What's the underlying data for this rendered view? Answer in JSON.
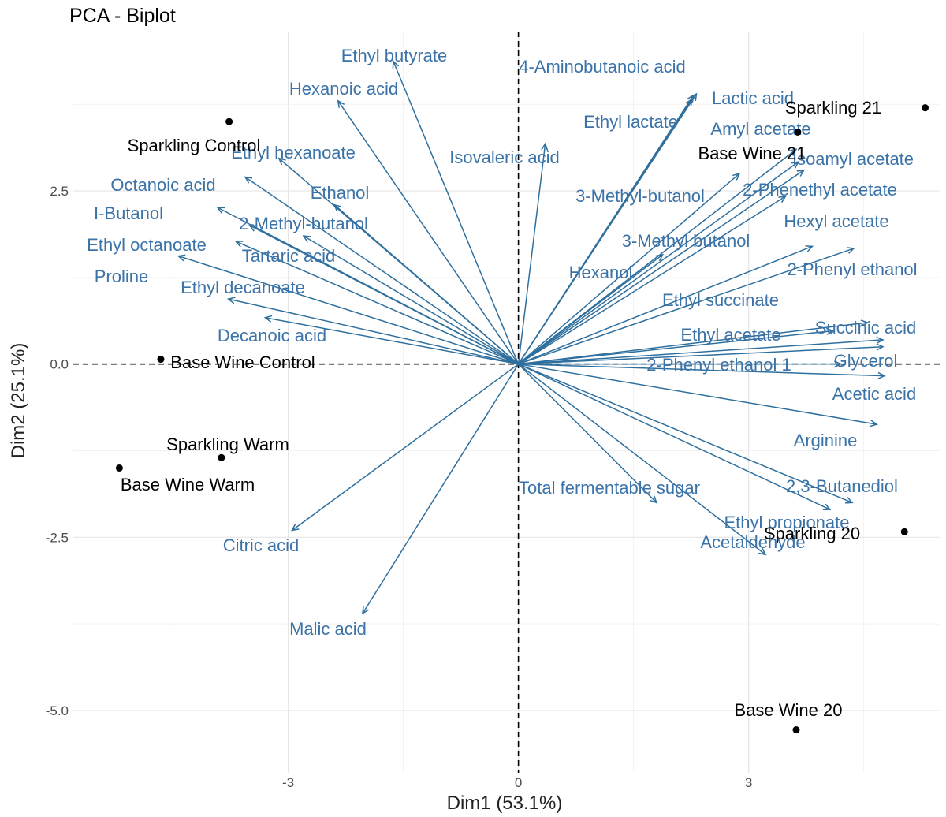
{
  "chart_data": {
    "type": "scatter",
    "subtype": "pca-biplot",
    "title": "PCA - Biplot",
    "xlabel": "Dim1 (53.1%)",
    "ylabel": "Dim2 (25.1%)",
    "xlim": [
      -5.8,
      5.5
    ],
    "ylim": [
      -5.9,
      4.8
    ],
    "x_ticks": [
      -3,
      0,
      3
    ],
    "y_ticks": [
      -5.0,
      -2.5,
      0.0,
      2.5
    ],
    "x_tick_labels": [
      "-3",
      "0",
      "3"
    ],
    "y_tick_labels": [
      "-5.0",
      "-2.5",
      "0.0",
      "2.5"
    ],
    "grid": true,
    "zero_lines": "dashed",
    "colors": {
      "variables": "#2e6f9e",
      "variable_labels": "#3b73a8",
      "individuals": "#000000"
    },
    "individuals": [
      {
        "name": "Sparkling Control",
        "x": -3.77,
        "y": 3.5
      },
      {
        "name": "Base Wine Control",
        "x": -4.66,
        "y": 0.07
      },
      {
        "name": "Sparkling Warm",
        "x": -3.87,
        "y": -1.35
      },
      {
        "name": "Base Wine Warm",
        "x": -5.2,
        "y": -1.5
      },
      {
        "name": "Sparkling 21",
        "x": 5.3,
        "y": 3.7
      },
      {
        "name": "Base Wine 21",
        "x": 3.64,
        "y": 3.35
      },
      {
        "name": "Sparkling 20",
        "x": 5.03,
        "y": -2.42
      },
      {
        "name": "Base Wine 20",
        "x": 3.62,
        "y": -5.28
      }
    ],
    "variables": [
      {
        "name": "Ethyl butyrate",
        "x": -1.63,
        "y": 4.37
      },
      {
        "name": "Hexanoic acid",
        "x": -2.35,
        "y": 3.8
      },
      {
        "name": "4-Aminobutanoic acid",
        "x": 2.28,
        "y": 3.88
      },
      {
        "name": "Lactic acid",
        "x": 2.32,
        "y": 3.9
      },
      {
        "name": "Ethyl lactate",
        "x": 2.26,
        "y": 3.82
      },
      {
        "name": "Isovaleric acid",
        "x": 0.35,
        "y": 3.18
      },
      {
        "name": "Ethyl hexanoate",
        "x": -3.12,
        "y": 2.97
      },
      {
        "name": "Octanoic acid",
        "x": -3.56,
        "y": 2.7
      },
      {
        "name": "Ethanol",
        "x": -2.4,
        "y": 2.3
      },
      {
        "name": "I-Butanol",
        "x": -3.92,
        "y": 2.26
      },
      {
        "name": "2-Methyl-butanol",
        "x": -3.5,
        "y": 2.0
      },
      {
        "name": "Ethyl octanoate",
        "x": -3.68,
        "y": 1.77
      },
      {
        "name": "Tartaric acid",
        "x": -2.8,
        "y": 1.85
      },
      {
        "name": "Proline",
        "x": -4.43,
        "y": 1.56
      },
      {
        "name": "Ethyl decanoate",
        "x": -3.78,
        "y": 0.94
      },
      {
        "name": "Decanoic acid",
        "x": -3.3,
        "y": 0.67
      },
      {
        "name": "Amyl acetate",
        "x": 3.62,
        "y": 3.1
      },
      {
        "name": "Isoamyl acetate",
        "x": 3.65,
        "y": 2.92
      },
      {
        "name": "3-Methyl-butanol",
        "x": 2.88,
        "y": 2.75
      },
      {
        "name": "2-Phenethyl acetate",
        "x": 3.72,
        "y": 2.8
      },
      {
        "name": "Hexyl acetate",
        "x": 3.48,
        "y": 2.42
      },
      {
        "name": "3-Methyl butanol",
        "x": 1.88,
        "y": 1.58
      },
      {
        "name": "Hexanol",
        "x": 3.83,
        "y": 1.7
      },
      {
        "name": "2-Phenyl ethanol",
        "x": 4.37,
        "y": 1.67
      },
      {
        "name": "Ethyl succinate",
        "x": 4.55,
        "y": 0.6
      },
      {
        "name": "Succinic acid",
        "x": 4.75,
        "y": 0.35
      },
      {
        "name": "Ethyl acetate",
        "x": 4.1,
        "y": 0.48
      },
      {
        "name": "Glycerol",
        "x": 4.75,
        "y": 0.25
      },
      {
        "name": "2-Phenyl ethanol 1",
        "x": 4.2,
        "y": 0.0
      },
      {
        "name": "Acetic acid",
        "x": 4.77,
        "y": -0.17
      },
      {
        "name": "Arginine",
        "x": 4.67,
        "y": -0.87
      },
      {
        "name": "2,3-Butanediol",
        "x": 4.35,
        "y": -2.0
      },
      {
        "name": "Total fermentable sugar",
        "x": 1.8,
        "y": -2.0
      },
      {
        "name": "Ethyl propionate",
        "x": 4.06,
        "y": -2.1
      },
      {
        "name": "Acetaldehyde",
        "x": 3.22,
        "y": -2.75
      },
      {
        "name": "Citric acid",
        "x": -2.95,
        "y": -2.4
      },
      {
        "name": "Malic acid",
        "x": -2.03,
        "y": -3.6
      }
    ]
  }
}
